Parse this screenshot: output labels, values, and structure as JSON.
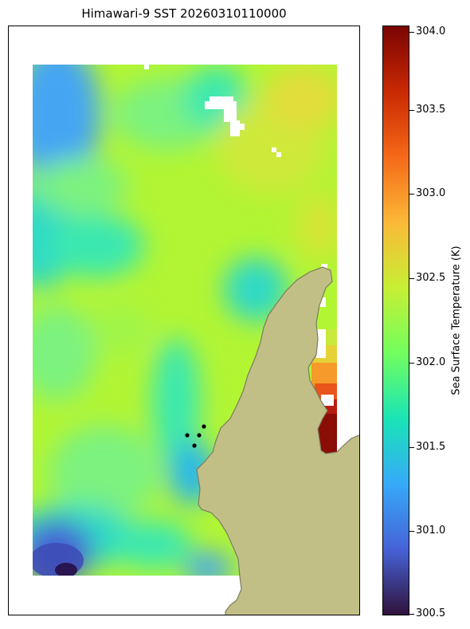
{
  "title": "Himawari-9 SST 20260310110000",
  "colorbar": {
    "label": "Sea Surface Temperature (K)",
    "min": 300.5,
    "max": 304.0,
    "colormap": "turbo",
    "ticks": [
      "304.0",
      "303.5",
      "303.0",
      "302.5",
      "302.0",
      "301.5",
      "301.0",
      "300.5"
    ]
  },
  "colors": {
    "land": "#c1bf85",
    "coastline": "#7d7b62",
    "frame": "#000000",
    "station": "#000000"
  },
  "map_data": {
    "field": "sea surface temperature",
    "unit": "K",
    "land_present": true,
    "cloud_gaps": true,
    "station_count": 4
  }
}
